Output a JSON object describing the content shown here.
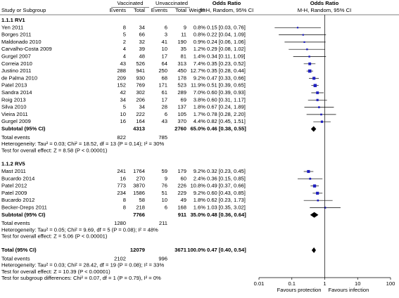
{
  "chart_data": {
    "type": "forest",
    "headers": {
      "study": "Study or Subgroup",
      "vaccinated": "Vaccinated",
      "unvaccinated": "Unvaccinated",
      "events": "Events",
      "total": "Total",
      "weight": "Weight",
      "or_col": "Odds Ratio",
      "method": "M-H, Random, 95% CI"
    },
    "groups": [
      {
        "label": "1.1.1 RV1",
        "studies": [
          {
            "name": "Yen 2011",
            "ve": 8,
            "vt": 34,
            "ue": 6,
            "ut": 9,
            "weight": 0.8,
            "weight_label": "0.8%",
            "or": 0.15,
            "lo": 0.03,
            "hi": 0.76,
            "ci_label": "0.15 [0.03, 0.76]"
          },
          {
            "name": "Borges 2011",
            "ve": 5,
            "vt": 66,
            "ue": 3,
            "ut": 11,
            "weight": 0.8,
            "weight_label": "0.8%",
            "or": 0.22,
            "lo": 0.04,
            "hi": 1.09,
            "ci_label": "0.22 [0.04, 1.09]"
          },
          {
            "name": "Maldonado 2010",
            "ve": 2,
            "vt": 32,
            "ue": 41,
            "ut": 190,
            "weight": 0.9,
            "weight_label": "0.9%",
            "or": 0.24,
            "lo": 0.06,
            "hi": 1.06,
            "ci_label": "0.24 [0.06, 1.06]"
          },
          {
            "name": "Carvalho-Costa 2009",
            "ve": 4,
            "vt": 39,
            "ue": 10,
            "ut": 35,
            "weight": 1.2,
            "weight_label": "1.2%",
            "or": 0.29,
            "lo": 0.08,
            "hi": 1.02,
            "ci_label": "0.29 [0.08, 1.02]"
          },
          {
            "name": "Gurgel 2007",
            "ve": 4,
            "vt": 48,
            "ue": 17,
            "ut": 81,
            "weight": 1.4,
            "weight_label": "1.4%",
            "or": 0.34,
            "lo": 0.11,
            "hi": 1.09,
            "ci_label": "0.34 [0.11, 1.09]"
          },
          {
            "name": "Correia 2010",
            "ve": 43,
            "vt": 526,
            "ue": 64,
            "ut": 313,
            "weight": 7.4,
            "weight_label": "7.4%",
            "or": 0.35,
            "lo": 0.23,
            "hi": 0.52,
            "ci_label": "0.35 [0.23, 0.52]"
          },
          {
            "name": "Justino 2011",
            "ve": 288,
            "vt": 941,
            "ue": 250,
            "ut": 450,
            "weight": 12.7,
            "weight_label": "12.7%",
            "or": 0.35,
            "lo": 0.28,
            "hi": 0.44,
            "ci_label": "0.35 [0.28, 0.44]"
          },
          {
            "name": "de Palma 2010",
            "ve": 209,
            "vt": 930,
            "ue": 68,
            "ut": 178,
            "weight": 9.2,
            "weight_label": "9.2%",
            "or": 0.47,
            "lo": 0.33,
            "hi": 0.66,
            "ci_label": "0.47 [0.33, 0.66]"
          },
          {
            "name": "Patel 2013",
            "ve": 152,
            "vt": 769,
            "ue": 171,
            "ut": 523,
            "weight": 11.9,
            "weight_label": "11.9%",
            "or": 0.51,
            "lo": 0.39,
            "hi": 0.65,
            "ci_label": "0.51 [0.39, 0.65]"
          },
          {
            "name": "Sandra 2014",
            "ve": 42,
            "vt": 302,
            "ue": 61,
            "ut": 289,
            "weight": 7.0,
            "weight_label": "7.0%",
            "or": 0.6,
            "lo": 0.39,
            "hi": 0.93,
            "ci_label": "0.60 [0.39, 0.93]"
          },
          {
            "name": "Roig 2013",
            "ve": 34,
            "vt": 206,
            "ue": 17,
            "ut": 69,
            "weight": 3.8,
            "weight_label": "3.8%",
            "or": 0.6,
            "lo": 0.31,
            "hi": 1.17,
            "ci_label": "0.60 [0.31, 1.17]"
          },
          {
            "name": "Silva 2010",
            "ve": 5,
            "vt": 34,
            "ue": 28,
            "ut": 137,
            "weight": 1.8,
            "weight_label": "1.8%",
            "or": 0.67,
            "lo": 0.24,
            "hi": 1.89,
            "ci_label": "0.67 [0.24, 1.89]"
          },
          {
            "name": "Vieira 2011",
            "ve": 10,
            "vt": 222,
            "ue": 6,
            "ut": 105,
            "weight": 1.7,
            "weight_label": "1.7%",
            "or": 0.78,
            "lo": 0.28,
            "hi": 2.2,
            "ci_label": "0.78 [0.28, 2.20]"
          },
          {
            "name": "Gurgel 2009",
            "ve": 16,
            "vt": 164,
            "ue": 43,
            "ut": 370,
            "weight": 4.4,
            "weight_label": "4.4%",
            "or": 0.82,
            "lo": 0.45,
            "hi": 1.51,
            "ci_label": "0.82 [0.45, 1.51]"
          }
        ],
        "subtotal": {
          "label": "Subtotal (95% CI)",
          "vt": 4313,
          "ut": 2760,
          "weight": "65.0%",
          "or": 0.46,
          "lo": 0.38,
          "hi": 0.55,
          "ci_label": "0.46 [0.38, 0.55]"
        },
        "total_events": {
          "label": "Total events",
          "ve": 822,
          "ue": 785
        },
        "heterogeneity": "Heterogeneity: Tau² = 0.03; Chi² = 18.52, df = 13 (P = 0.14); I² = 30%",
        "overall_effect": "Test for overall effect: Z = 8.58 (P < 0.00001)"
      },
      {
        "label": "1.1.2 RV5",
        "studies": [
          {
            "name": "Mast 2011",
            "ve": 241,
            "vt": 1764,
            "ue": 59,
            "ut": 179,
            "weight": 9.2,
            "weight_label": "9.2%",
            "or": 0.32,
            "lo": 0.23,
            "hi": 0.45,
            "ci_label": "0.32 [0.23, 0.45]"
          },
          {
            "name": "Bucardo 2014",
            "ve": 16,
            "vt": 270,
            "ue": 9,
            "ut": 60,
            "weight": 2.4,
            "weight_label": "2.4%",
            "or": 0.36,
            "lo": 0.15,
            "hi": 0.85,
            "ci_label": "0.36 [0.15, 0.85]"
          },
          {
            "name": "Patel 2012",
            "ve": 773,
            "vt": 3870,
            "ue": 76,
            "ut": 226,
            "weight": 10.8,
            "weight_label": "10.8%",
            "or": 0.49,
            "lo": 0.37,
            "hi": 0.66,
            "ci_label": "0.49 [0.37, 0.66]"
          },
          {
            "name": "Patel 2009",
            "ve": 234,
            "vt": 1586,
            "ue": 51,
            "ut": 229,
            "weight": 9.2,
            "weight_label": "9.2%",
            "or": 0.6,
            "lo": 0.43,
            "hi": 0.85,
            "ci_label": "0.60 [0.43, 0.85]"
          },
          {
            "name": "Bucardo 2012",
            "ve": 8,
            "vt": 58,
            "ue": 10,
            "ut": 49,
            "weight": 1.8,
            "weight_label": "1.8%",
            "or": 0.62,
            "lo": 0.23,
            "hi": 1.73,
            "ci_label": "0.62 [0.23, 1.73]"
          },
          {
            "name": "Becker-Dreps 2011",
            "ve": 8,
            "vt": 218,
            "ue": 6,
            "ut": 168,
            "weight": 1.6,
            "weight_label": "1.6%",
            "or": 1.03,
            "lo": 0.35,
            "hi": 3.02,
            "ci_label": "1.03 [0.35, 3.02]"
          }
        ],
        "subtotal": {
          "label": "Subtotal (95% CI)",
          "vt": 7766,
          "ut": 911,
          "weight": "35.0%",
          "or": 0.48,
          "lo": 0.36,
          "hi": 0.64,
          "ci_label": "0.48 [0.36, 0.64]"
        },
        "total_events": {
          "label": "Total events",
          "ve": 1280,
          "ue": 211
        },
        "heterogeneity": "Heterogeneity: Tau² = 0.05; Chi² = 9.69, df = 5 (P = 0.08); I² = 48%",
        "overall_effect": "Test for overall effect: Z = 5.06 (P < 0.00001)"
      }
    ],
    "total": {
      "label": "Total (95% CI)",
      "vt": 12079,
      "ut": 3671,
      "weight": "100.0%",
      "or": 0.47,
      "lo": 0.4,
      "hi": 0.54,
      "ci_label": "0.47 [0.40, 0.54]"
    },
    "total_events": {
      "label": "Total events",
      "ve": 2102,
      "ue": 996
    },
    "heterogeneity": "Heterogeneity: Tau² = 0.03; Chi² = 28.42, df = 19 (P = 0.08); I² = 33%",
    "overall_effect": "Test for overall effect: Z = 10.39 (P < 0.00001)",
    "subgroup_test": "Test for subgroup differences: Chi² = 0.07, df = 1 (P = 0.79), I² = 0%",
    "xlim": [
      0.01,
      100
    ],
    "xticks": [
      0.01,
      0.1,
      1,
      10,
      100
    ],
    "log_x": true,
    "left_label": "Favours protection",
    "right_label": "Favours infection",
    "marker_color": "#1f1fbf",
    "diamond_color": "#000000"
  }
}
